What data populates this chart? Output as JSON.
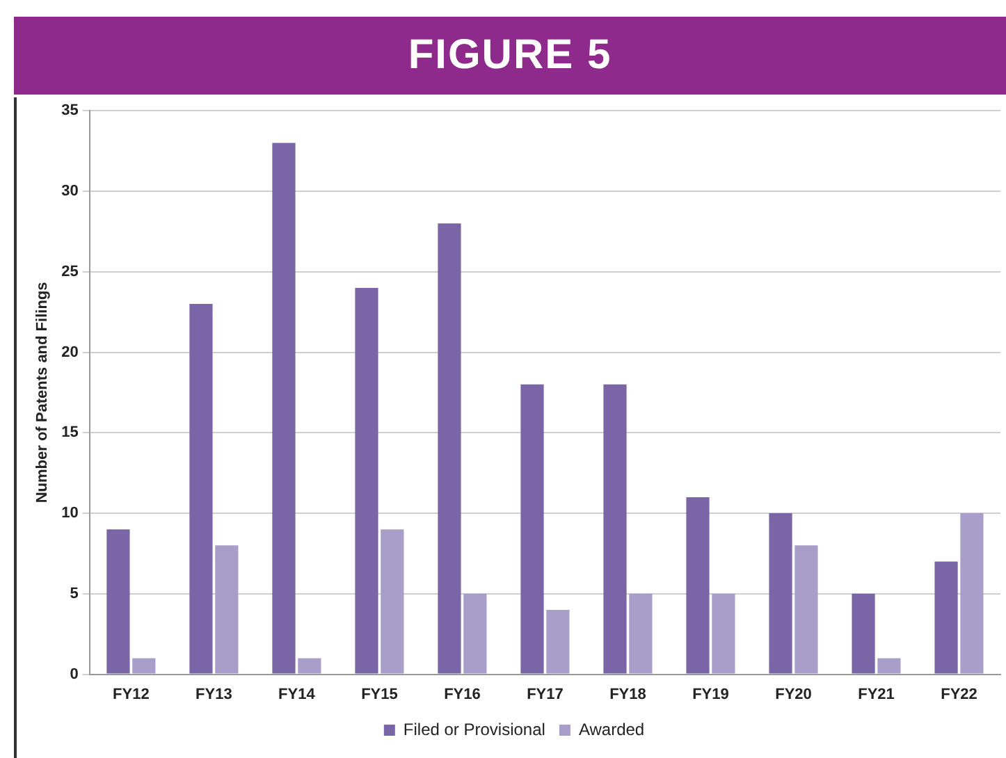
{
  "chart_data": {
    "type": "bar",
    "title": "FIGURE 5",
    "ylabel": "Number of Patents and Filings",
    "categories": [
      "FY12",
      "FY13",
      "FY14",
      "FY15",
      "FY16",
      "FY17",
      "FY18",
      "FY19",
      "FY20",
      "FY21",
      "FY22"
    ],
    "series": [
      {
        "name": "Filed or Provisional",
        "color": "#7a66a6",
        "values": [
          9,
          23,
          33,
          24,
          28,
          18,
          18,
          11,
          10,
          5,
          7
        ]
      },
      {
        "name": "Awarded",
        "color": "#a99dc9",
        "values": [
          1,
          8,
          1,
          9,
          5,
          4,
          5,
          5,
          8,
          1,
          10
        ]
      }
    ],
    "ylim": [
      0,
      35
    ],
    "yticks": [
      0,
      5,
      10,
      15,
      20,
      25,
      30,
      35
    ],
    "grid": "y",
    "legend": "bottom"
  }
}
